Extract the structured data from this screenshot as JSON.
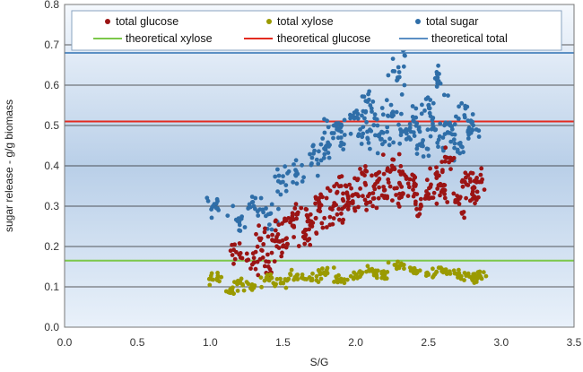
{
  "chart_data": {
    "type": "scatter",
    "xlabel": "S/G",
    "ylabel": "sugar release - g/g biomass",
    "xlim": [
      0,
      3.5
    ],
    "ylim": [
      0,
      0.8
    ],
    "x_ticks": [
      "0.0",
      "0.5",
      "1.0",
      "1.5",
      "2.0",
      "2.5",
      "3.0",
      "3.5"
    ],
    "y_ticks": [
      "0.0",
      "0.1",
      "0.2",
      "0.3",
      "0.4",
      "0.5",
      "0.6",
      "0.7",
      "0.8"
    ],
    "gridlines": "horizontal",
    "legend_position": "top",
    "series": [
      {
        "name": "total glucose",
        "color": "#9b1414",
        "marker": "circle",
        "points": [
          [
            1.2,
            0.18
          ],
          [
            1.3,
            0.16
          ],
          [
            1.35,
            0.22
          ],
          [
            1.4,
            0.15
          ],
          [
            1.45,
            0.24
          ],
          [
            1.5,
            0.2
          ],
          [
            1.55,
            0.26
          ],
          [
            1.6,
            0.28
          ],
          [
            1.65,
            0.22
          ],
          [
            1.7,
            0.25
          ],
          [
            1.75,
            0.3
          ],
          [
            1.8,
            0.32
          ],
          [
            1.85,
            0.27
          ],
          [
            1.9,
            0.35
          ],
          [
            1.95,
            0.3
          ],
          [
            2.0,
            0.33
          ],
          [
            2.05,
            0.38
          ],
          [
            2.1,
            0.31
          ],
          [
            2.15,
            0.36
          ],
          [
            2.2,
            0.34
          ],
          [
            2.25,
            0.4
          ],
          [
            2.3,
            0.32
          ],
          [
            2.35,
            0.37
          ],
          [
            2.4,
            0.35
          ],
          [
            2.45,
            0.3
          ],
          [
            2.5,
            0.33
          ],
          [
            2.55,
            0.38
          ],
          [
            2.6,
            0.34
          ],
          [
            2.65,
            0.42
          ],
          [
            2.7,
            0.31
          ],
          [
            2.75,
            0.36
          ],
          [
            2.8,
            0.33
          ],
          [
            2.85,
            0.36
          ]
        ]
      },
      {
        "name": "total xylose",
        "color": "#9a9a00",
        "marker": "circle",
        "points": [
          [
            1.05,
            0.12
          ],
          [
            1.15,
            0.09
          ],
          [
            1.2,
            0.11
          ],
          [
            1.3,
            0.1
          ],
          [
            1.4,
            0.12
          ],
          [
            1.5,
            0.11
          ],
          [
            1.6,
            0.13
          ],
          [
            1.7,
            0.12
          ],
          [
            1.8,
            0.14
          ],
          [
            1.9,
            0.12
          ],
          [
            2.0,
            0.13
          ],
          [
            2.1,
            0.14
          ],
          [
            2.2,
            0.13
          ],
          [
            2.3,
            0.15
          ],
          [
            2.4,
            0.14
          ],
          [
            2.5,
            0.13
          ],
          [
            2.6,
            0.14
          ],
          [
            2.7,
            0.13
          ],
          [
            2.8,
            0.12
          ],
          [
            2.85,
            0.13
          ]
        ]
      },
      {
        "name": "total sugar",
        "color": "#2f6ea8",
        "marker": "circle",
        "points": [
          [
            1.02,
            0.3
          ],
          [
            1.2,
            0.26
          ],
          [
            1.3,
            0.3
          ],
          [
            1.4,
            0.28
          ],
          [
            1.5,
            0.36
          ],
          [
            1.6,
            0.38
          ],
          [
            1.7,
            0.42
          ],
          [
            1.8,
            0.45
          ],
          [
            1.85,
            0.5
          ],
          [
            1.9,
            0.47
          ],
          [
            2.0,
            0.52
          ],
          [
            2.05,
            0.48
          ],
          [
            2.1,
            0.55
          ],
          [
            2.15,
            0.5
          ],
          [
            2.2,
            0.46
          ],
          [
            2.25,
            0.53
          ],
          [
            2.3,
            0.62
          ],
          [
            2.35,
            0.48
          ],
          [
            2.4,
            0.51
          ],
          [
            2.45,
            0.45
          ],
          [
            2.5,
            0.55
          ],
          [
            2.55,
            0.49
          ],
          [
            2.57,
            0.61
          ],
          [
            2.6,
            0.47
          ],
          [
            2.65,
            0.5
          ],
          [
            2.7,
            0.44
          ],
          [
            2.75,
            0.52
          ],
          [
            2.8,
            0.49
          ],
          [
            2.33,
            0.69
          ]
        ]
      }
    ],
    "reference_lines": [
      {
        "name": "theoretical xylose",
        "color": "#7cc84a",
        "y": 0.165
      },
      {
        "name": "theoretical glucose",
        "color": "#e32b20",
        "y": 0.51
      },
      {
        "name": "theoretical total",
        "color": "#5b8fc4",
        "y": 0.68
      }
    ],
    "legend": {
      "row1": [
        "total glucose",
        "total xylose",
        "total sugar"
      ],
      "row2": [
        "theoretical xylose",
        "theoretical glucose",
        "theoretical total"
      ]
    }
  }
}
